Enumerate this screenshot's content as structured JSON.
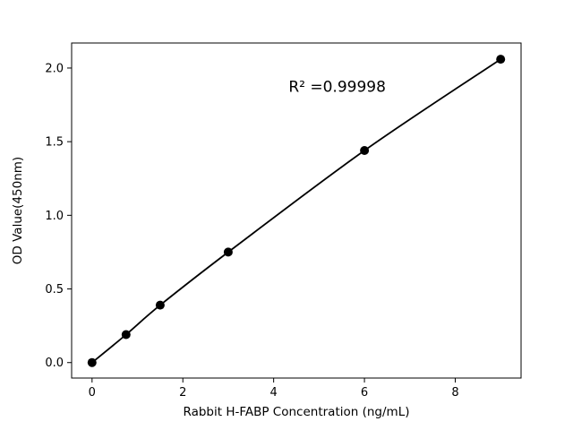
{
  "chart_data": {
    "type": "line",
    "title": "",
    "xlabel": "Rabbit H-FABP Concentration (ng/mL)",
    "ylabel": "OD Value(450nm)",
    "x": [
      0,
      0.75,
      1.5,
      3,
      6,
      9
    ],
    "y": [
      0.0,
      0.19,
      0.39,
      0.75,
      1.44,
      2.06
    ],
    "xlim": [
      -0.45,
      9.45
    ],
    "ylim": [
      -0.105,
      2.17
    ],
    "xticks": [
      0,
      2,
      4,
      6,
      8
    ],
    "xtick_labels": [
      "0",
      "2",
      "4",
      "6",
      "8"
    ],
    "yticks": [
      0.0,
      0.5,
      1.0,
      1.5,
      2.0
    ],
    "ytick_labels": [
      "0.0",
      "0.5",
      "1.0",
      "1.5",
      "2.0"
    ],
    "annotation": {
      "text": "R² =0.99998",
      "x": 5.4,
      "y": 1.84
    },
    "grid": false,
    "legend": null,
    "line_color": "#000000",
    "marker": "circle",
    "marker_color": "#000000",
    "background": "#ffffff"
  }
}
